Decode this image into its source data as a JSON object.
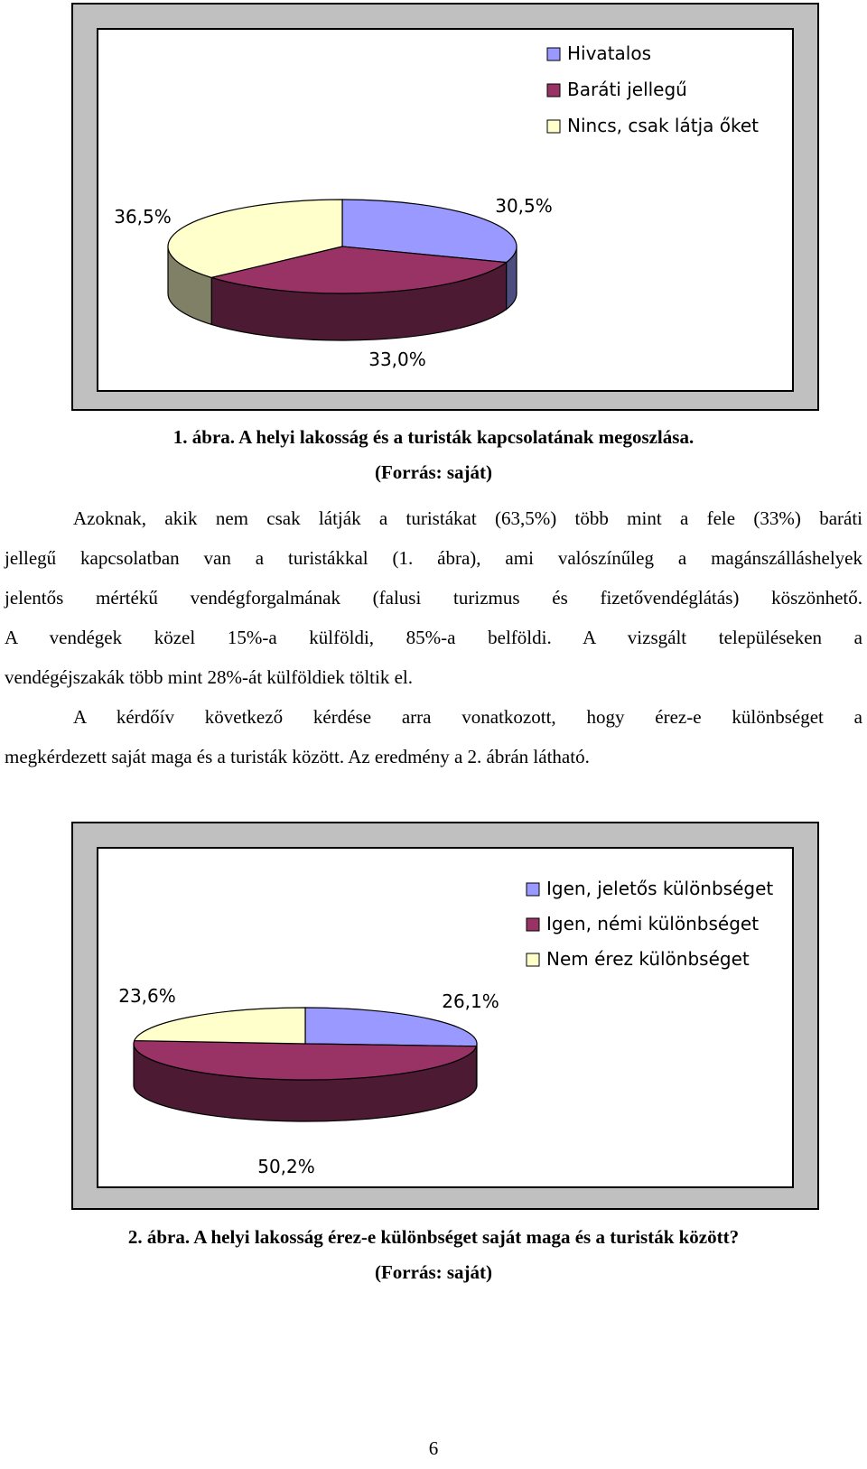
{
  "figure1": {
    "legend": [
      {
        "label": "Hivatalos",
        "color": "#9999ff"
      },
      {
        "label": "Baráti jellegű",
        "color": "#993366"
      },
      {
        "label": "Nincs, csak látja őket",
        "color": "#ffffcc"
      }
    ],
    "data_labels": [
      "30,5%",
      "33,0%",
      "36,5%"
    ],
    "caption_line1": "1. ábra. A helyi lakosság és a turisták kapcsolatának megoszlása.",
    "caption_line2": "(Forrás: saját)"
  },
  "figure2": {
    "legend": [
      {
        "label": "Igen, jeletős különbséget",
        "color": "#9999ff"
      },
      {
        "label": "Igen, némi különbséget",
        "color": "#993366"
      },
      {
        "label": "Nem érez különbséget",
        "color": "#ffffcc"
      }
    ],
    "data_labels": [
      "26,1%",
      "50,2%",
      "23,6%"
    ],
    "caption_line1": "2. ábra. A helyi lakosság érez-e különbséget saját maga és a turisták között?",
    "caption_line2": "(Forrás: saját)"
  },
  "chart_data": [
    {
      "type": "pie",
      "title": "",
      "categories": [
        "Hivatalos",
        "Baráti jellegű",
        "Nincs, csak látja őket"
      ],
      "values": [
        30.5,
        33.0,
        36.5
      ],
      "colors": [
        "#9999ff",
        "#993366",
        "#ffffcc"
      ],
      "legend_position": "top-right"
    },
    {
      "type": "pie",
      "title": "",
      "categories": [
        "Igen, jeletős különbséget",
        "Igen, némi különbséget",
        "Nem érez különbséget"
      ],
      "values": [
        26.1,
        50.2,
        23.6
      ],
      "colors": [
        "#9999ff",
        "#993366",
        "#ffffcc"
      ],
      "legend_position": "top-right"
    }
  ],
  "paragraph1": {
    "lines": [
      "Azoknak, akik nem csak látják a turistákat (63,5%) több mint a fele (33%) baráti",
      "jellegű kapcsolatban van a turistákkal (1. ábra), ami valószínűleg a magánszálláshelyek",
      "jelentős mértékű vendégforgalmának  (falusi turizmus és fizetővendéglátás) köszönhető.",
      "A vendégek közel 15%-a külföldi, 85%-a belföldi. A vizsgált településeken a",
      "vendégéjszakák több mint 28%-át külföldiek töltik el."
    ]
  },
  "paragraph2": {
    "lines": [
      "A kérdőív következő kérdése arra vonatkozott, hogy érez-e különbséget a",
      "megkérdezett saját maga és a turisták között. Az eredmény a 2. ábrán látható."
    ]
  },
  "page_number": "6"
}
